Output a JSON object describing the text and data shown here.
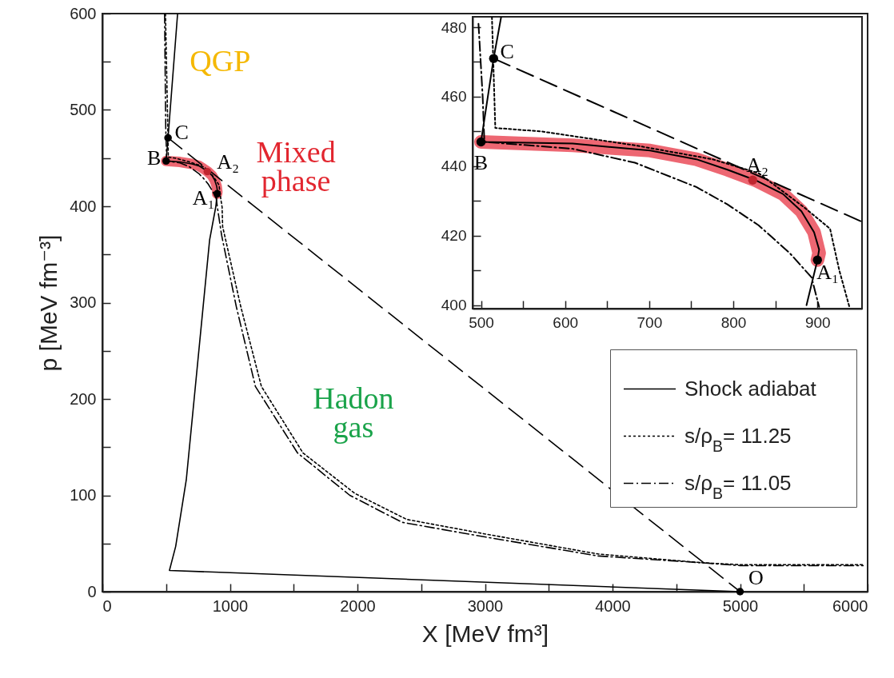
{
  "chart_data": [
    {
      "type": "line",
      "xlabel": "X [MeV fm³]",
      "ylabel": "p [MeV fm⁻³]",
      "xlim": [
        0,
        6000
      ],
      "ylim": [
        0,
        600
      ],
      "xticks": [
        0,
        {
          "value": 500,
          "label": null
        },
        1000,
        {
          "value": 1500,
          "label": null
        },
        2000,
        {
          "value": 2500,
          "label": null
        },
        3000,
        {
          "value": 3500,
          "label": null
        },
        4000,
        {
          "value": 4500,
          "label": null
        },
        5000,
        {
          "value": 5500,
          "label": null
        },
        6000
      ],
      "yticks": [
        0,
        {
          "value": 50,
          "label": null
        },
        100,
        {
          "value": 150,
          "label": null
        },
        200,
        {
          "value": 250,
          "label": null
        },
        300,
        {
          "value": 350,
          "label": null
        },
        400,
        {
          "value": 450,
          "label": null
        },
        500,
        {
          "value": 550,
          "label": null
        },
        600
      ],
      "legend": "right",
      "series": [
        {
          "name": "Shock adiabat",
          "color": "#000000",
          "line_style": "solid",
          "x": [
            5000,
            526,
            575,
            658,
            719,
            780,
            841,
            890,
            900,
            902,
            896,
            881,
            859,
            826,
            793,
            756,
            701,
            609,
            500,
            515,
            590
          ],
          "values": [
            0,
            22,
            47,
            116,
            199,
            282,
            365,
            400,
            413,
            416,
            421,
            427,
            432,
            436,
            439,
            442,
            444,
            446,
            447,
            471,
            600
          ]
        },
        {
          "name": "s/ρ$_{B}$= 11.25",
          "color": "#000000",
          "line_style": "dotted",
          "x": [
            495,
            513,
            517,
            572,
            683,
            775,
            830,
            885,
            915,
            926,
            939,
            943,
            1085,
            1247,
            1573,
            1979,
            2386,
            2996,
            3890,
            4703,
            5000,
            5965
          ],
          "values": [
            600,
            483,
            451,
            450,
            446,
            442,
            438,
            428,
            422,
            410,
            399,
            379,
            296,
            213,
            144,
            102,
            75,
            60,
            39,
            30,
            28,
            28
          ]
        },
        {
          "name": "s/ρ$_{B}$= 11.05",
          "color": "#000000",
          "line_style": "dashdot",
          "x": [
            488,
            497,
            502,
            504,
            609,
            683,
            756,
            793,
            830,
            867,
            893,
            902,
            935,
            1050,
            1200,
            1530,
            1940,
            2350,
            2990,
            3890,
            4700,
            5000,
            5965
          ],
          "values": [
            600,
            481,
            460,
            447,
            445,
            441,
            434,
            429,
            423,
            415,
            408,
            399,
            370,
            296,
            213,
            144,
            100,
            72,
            57,
            37,
            30,
            27,
            27
          ]
        },
        {
          "color": "#000000",
          "line_style": "dashed",
          "x": [
            515,
            5000
          ],
          "values": [
            471,
            0
          ]
        },
        {
          "color": "#e8414f",
          "line_style": "solid",
          "x": [
            500,
            609,
            701,
            756,
            793,
            826,
            859,
            881,
            896,
            902,
            900
          ],
          "values": [
            447,
            446,
            444,
            442,
            439,
            436,
            432,
            427,
            421,
            415,
            413
          ]
        },
        {
          "type": "scatter",
          "marker": "circle",
          "x": [
            500,
            515,
            900,
            823,
            5000
          ],
          "values": [
            447,
            471,
            413,
            436,
            0
          ],
          "colors": [
            "#000000",
            "#000000",
            "#000000",
            "#c0262f",
            "#000000"
          ]
        }
      ],
      "annotations": [
        "QGP",
        "Mixed\nphase",
        "Hadon\ngas",
        {
          "text": "B",
          "x": 500,
          "y": 447
        },
        {
          "text": "C",
          "x": 515,
          "y": 471
        },
        {
          "text": "A₂",
          "x": 823,
          "y": 436
        },
        {
          "text": "A₁",
          "x": 900,
          "y": 413
        },
        {
          "text": "O",
          "x": 5000,
          "y": 0
        }
      ]
    },
    {
      "type": "line",
      "xlim": [
        490,
        953
      ],
      "ylim": [
        399,
        483
      ],
      "xticks": [
        500,
        {
          "value": 550,
          "label": null
        },
        600,
        {
          "value": 650,
          "label": null
        },
        700,
        {
          "value": 750,
          "label": null
        },
        800,
        {
          "value": 850,
          "label": null
        },
        900
      ],
      "yticks": [
        400,
        {
          "value": 410,
          "label": null
        },
        420,
        {
          "value": 430,
          "label": null
        },
        440,
        {
          "value": 450,
          "label": null
        },
        460,
        {
          "value": 470,
          "label": null
        },
        480
      ],
      "series": [
        {
          "color": "#000000",
          "line_style": "solid",
          "x": [
            887,
            900,
            902,
            896,
            881,
            859,
            826,
            793,
            756,
            701,
            609,
            500,
            515,
            524
          ],
          "values": [
            400,
            413,
            416,
            421,
            427,
            432,
            436,
            439,
            442,
            444.5,
            446.5,
            447,
            471,
            483
          ]
        },
        {
          "color": "#000000",
          "line_style": "dotted",
          "x": [
            513,
            517,
            572,
            683,
            775,
            830,
            885,
            915,
            926,
            938
          ],
          "values": [
            483,
            451,
            450,
            446,
            442,
            438,
            428,
            422,
            410,
            399.5
          ]
        },
        {
          "color": "#000000",
          "line_style": "dashdot",
          "x": [
            497,
            502,
            504,
            609,
            683,
            756,
            793,
            830,
            867,
            893,
            902
          ],
          "values": [
            481,
            460,
            447,
            445,
            441,
            434,
            429,
            423,
            415,
            408,
            399.5
          ]
        },
        {
          "color": "#000000",
          "line_style": "dashed",
          "x": [
            515,
            953
          ],
          "values": [
            471,
            424
          ]
        },
        {
          "color": "#e8414f",
          "line_style": "solid",
          "x": [
            500,
            609,
            701,
            756,
            793,
            826,
            859,
            881,
            896,
            902,
            900
          ],
          "values": [
            447,
            446,
            444.5,
            442,
            439,
            436,
            432,
            427,
            421,
            415,
            413
          ]
        },
        {
          "type": "scatter",
          "marker": "circle",
          "x": [
            500,
            515,
            900,
            823
          ],
          "values": [
            447,
            471,
            413,
            436
          ],
          "colors": [
            "#000000",
            "#000000",
            "#000000",
            "#c0262f"
          ]
        }
      ],
      "annotations": [
        {
          "text": "C",
          "x": 515,
          "y": 471
        },
        {
          "text": "B",
          "x": 500,
          "y": 447
        },
        {
          "text": "A₂",
          "x": 823,
          "y": 436
        },
        {
          "text": "A₁",
          "x": 900,
          "y": 413
        }
      ]
    }
  ]
}
